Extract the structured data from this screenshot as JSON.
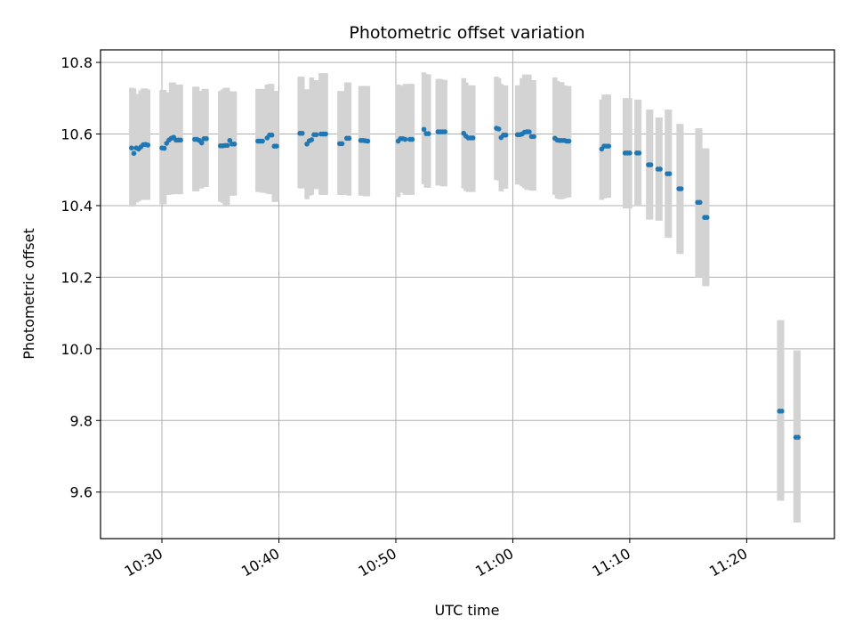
{
  "chart_data": {
    "type": "scatter",
    "title": "Photometric offset variation",
    "xlabel": "UTC time",
    "ylabel": "Photometric offset",
    "x_unit": "minutes",
    "xlim": [
      "10:24:45",
      "11:27:30"
    ],
    "ylim": [
      9.47,
      10.835
    ],
    "x_ticks": [
      "10:30",
      "10:40",
      "10:50",
      "11:00",
      "11:10",
      "11:20"
    ],
    "y_ticks": [
      9.6,
      9.8,
      10.0,
      10.2,
      10.4,
      10.6,
      10.8
    ],
    "y_tick_labels": [
      "9.6",
      "9.8",
      "10.0",
      "10.2",
      "10.4",
      "10.6",
      "10.8"
    ],
    "grid": true,
    "colors": {
      "marker": "#1f77b4",
      "errorbar": "#d3d3d3",
      "grid": "#b0b0b0"
    },
    "series": [
      {
        "marker": "point",
        "error_bars": true,
        "x": [
          "10:27:24",
          "10:27:36",
          "10:27:48",
          "10:28:00",
          "10:28:12",
          "10:28:24",
          "10:28:36",
          "10:28:48",
          "10:30:00",
          "10:30:12",
          "10:30:24",
          "10:30:36",
          "10:30:48",
          "10:31:00",
          "10:31:12",
          "10:31:24",
          "10:31:36",
          "10:32:48",
          "10:33:00",
          "10:33:12",
          "10:33:24",
          "10:33:36",
          "10:33:48",
          "10:35:00",
          "10:35:12",
          "10:35:24",
          "10:35:36",
          "10:35:48",
          "10:36:00",
          "10:36:12",
          "10:38:12",
          "10:38:24",
          "10:38:36",
          "10:39:00",
          "10:39:12",
          "10:39:24",
          "10:39:36",
          "10:39:48",
          "10:41:48",
          "10:42:00",
          "10:42:24",
          "10:42:36",
          "10:42:48",
          "10:43:00",
          "10:43:12",
          "10:43:36",
          "10:43:48",
          "10:44:00",
          "10:45:12",
          "10:45:24",
          "10:45:48",
          "10:46:00",
          "10:47:00",
          "10:47:12",
          "10:47:24",
          "10:47:36",
          "10:50:12",
          "10:50:24",
          "10:50:36",
          "10:50:48",
          "10:51:12",
          "10:51:24",
          "10:52:24",
          "10:52:36",
          "10:52:48",
          "10:53:36",
          "10:53:48",
          "10:54:00",
          "10:54:12",
          "10:55:48",
          "10:56:00",
          "10:56:12",
          "10:56:24",
          "10:56:36",
          "10:58:36",
          "10:58:48",
          "10:59:00",
          "10:59:12",
          "10:59:24",
          "11:00:24",
          "11:00:36",
          "11:00:48",
          "11:01:00",
          "11:01:12",
          "11:01:24",
          "11:01:36",
          "11:01:48",
          "11:03:36",
          "11:03:48",
          "11:04:00",
          "11:04:12",
          "11:04:24",
          "11:04:36",
          "11:04:48",
          "11:07:36",
          "11:07:48",
          "11:08:00",
          "11:08:12",
          "11:09:36",
          "11:09:48",
          "11:10:00",
          "11:10:36",
          "11:10:48",
          "11:11:36",
          "11:11:48",
          "11:12:24",
          "11:12:36",
          "11:13:12",
          "11:13:24",
          "11:14:12",
          "11:14:24",
          "11:15:48",
          "11:16:00",
          "11:16:24",
          "11:16:36",
          "11:22:48",
          "11:23:00",
          "11:24:12",
          "11:24:24"
        ],
        "y": [
          10.561,
          10.546,
          10.561,
          10.558,
          10.564,
          10.57,
          10.571,
          10.569,
          10.561,
          10.56,
          10.574,
          10.583,
          10.588,
          10.591,
          10.583,
          10.583,
          10.583,
          10.585,
          10.585,
          10.582,
          10.575,
          10.587,
          10.587,
          10.567,
          10.567,
          10.568,
          10.568,
          10.582,
          10.572,
          10.572,
          10.58,
          10.58,
          10.58,
          10.589,
          10.597,
          10.597,
          10.566,
          10.566,
          10.602,
          10.602,
          10.572,
          10.581,
          10.584,
          10.598,
          10.598,
          10.6,
          10.6,
          10.6,
          10.573,
          10.573,
          10.588,
          10.588,
          10.582,
          10.582,
          10.581,
          10.58,
          10.58,
          10.587,
          10.587,
          10.585,
          10.585,
          10.585,
          10.613,
          10.601,
          10.601,
          10.606,
          10.606,
          10.606,
          10.606,
          10.602,
          10.594,
          10.589,
          10.589,
          10.589,
          10.616,
          10.614,
          10.59,
          10.597,
          10.597,
          10.598,
          10.598,
          10.6,
          10.605,
          10.606,
          10.606,
          10.593,
          10.593,
          10.588,
          10.583,
          10.582,
          10.582,
          10.582,
          10.58,
          10.58,
          10.558,
          10.566,
          10.566,
          10.566,
          10.547,
          10.547,
          10.547,
          10.547,
          10.547,
          10.514,
          10.514,
          10.502,
          10.502,
          10.489,
          10.489,
          10.447,
          10.447,
          10.409,
          10.409,
          10.367,
          10.367,
          9.826,
          9.826,
          9.753,
          9.753
        ],
        "err_low": [
          10.397,
          10.4,
          10.409,
          10.412,
          10.416,
          10.416,
          10.416,
          10.416,
          10.404,
          10.404,
          10.43,
          10.43,
          10.432,
          10.432,
          10.432,
          10.432,
          10.432,
          10.44,
          10.44,
          10.448,
          10.448,
          10.452,
          10.452,
          10.411,
          10.408,
          10.402,
          10.402,
          10.428,
          10.428,
          10.428,
          10.438,
          10.438,
          10.436,
          10.434,
          10.432,
          10.432,
          10.41,
          10.41,
          10.448,
          10.448,
          10.418,
          10.428,
          10.43,
          10.446,
          10.446,
          10.43,
          10.43,
          10.43,
          10.43,
          10.43,
          10.43,
          10.428,
          10.428,
          10.428,
          10.426,
          10.426,
          10.424,
          10.436,
          10.436,
          10.43,
          10.43,
          10.43,
          10.46,
          10.45,
          10.45,
          10.456,
          10.456,
          10.454,
          10.454,
          10.448,
          10.441,
          10.438,
          10.438,
          10.438,
          10.472,
          10.47,
          10.44,
          10.447,
          10.447,
          10.459,
          10.459,
          10.454,
          10.449,
          10.444,
          10.444,
          10.442,
          10.442,
          10.43,
          10.42,
          10.418,
          10.418,
          10.42,
          10.423,
          10.423,
          10.416,
          10.42,
          10.422,
          10.422,
          10.392,
          10.392,
          10.392,
          10.4,
          10.4,
          10.361,
          10.361,
          10.358,
          10.358,
          10.31,
          10.31,
          10.265,
          10.265,
          10.2,
          10.2,
          10.175,
          10.175,
          9.576,
          9.576,
          9.515,
          9.515
        ],
        "err_high": [
          10.729,
          10.727,
          10.712,
          10.708,
          10.722,
          10.727,
          10.727,
          10.724,
          10.723,
          10.723,
          10.716,
          10.716,
          10.744,
          10.744,
          10.738,
          10.738,
          10.738,
          10.732,
          10.732,
          10.72,
          10.72,
          10.726,
          10.726,
          10.72,
          10.724,
          10.729,
          10.729,
          10.719,
          10.719,
          10.719,
          10.726,
          10.726,
          10.726,
          10.738,
          10.74,
          10.74,
          10.72,
          10.72,
          10.76,
          10.76,
          10.725,
          10.725,
          10.758,
          10.75,
          10.75,
          10.77,
          10.77,
          10.77,
          10.72,
          10.72,
          10.744,
          10.744,
          10.734,
          10.734,
          10.734,
          10.734,
          10.738,
          10.735,
          10.735,
          10.74,
          10.74,
          10.74,
          10.772,
          10.767,
          10.767,
          10.754,
          10.754,
          10.751,
          10.751,
          10.756,
          10.744,
          10.736,
          10.736,
          10.736,
          10.76,
          10.756,
          10.74,
          10.736,
          10.736,
          10.736,
          10.736,
          10.756,
          10.766,
          10.766,
          10.766,
          10.75,
          10.75,
          10.758,
          10.748,
          10.745,
          10.745,
          10.736,
          10.734,
          10.734,
          10.696,
          10.71,
          10.71,
          10.71,
          10.7,
          10.7,
          10.7,
          10.696,
          10.696,
          10.668,
          10.668,
          10.646,
          10.646,
          10.668,
          10.668,
          10.628,
          10.628,
          10.616,
          10.616,
          10.56,
          10.56,
          10.08,
          10.08,
          9.996,
          9.996
        ]
      }
    ]
  }
}
